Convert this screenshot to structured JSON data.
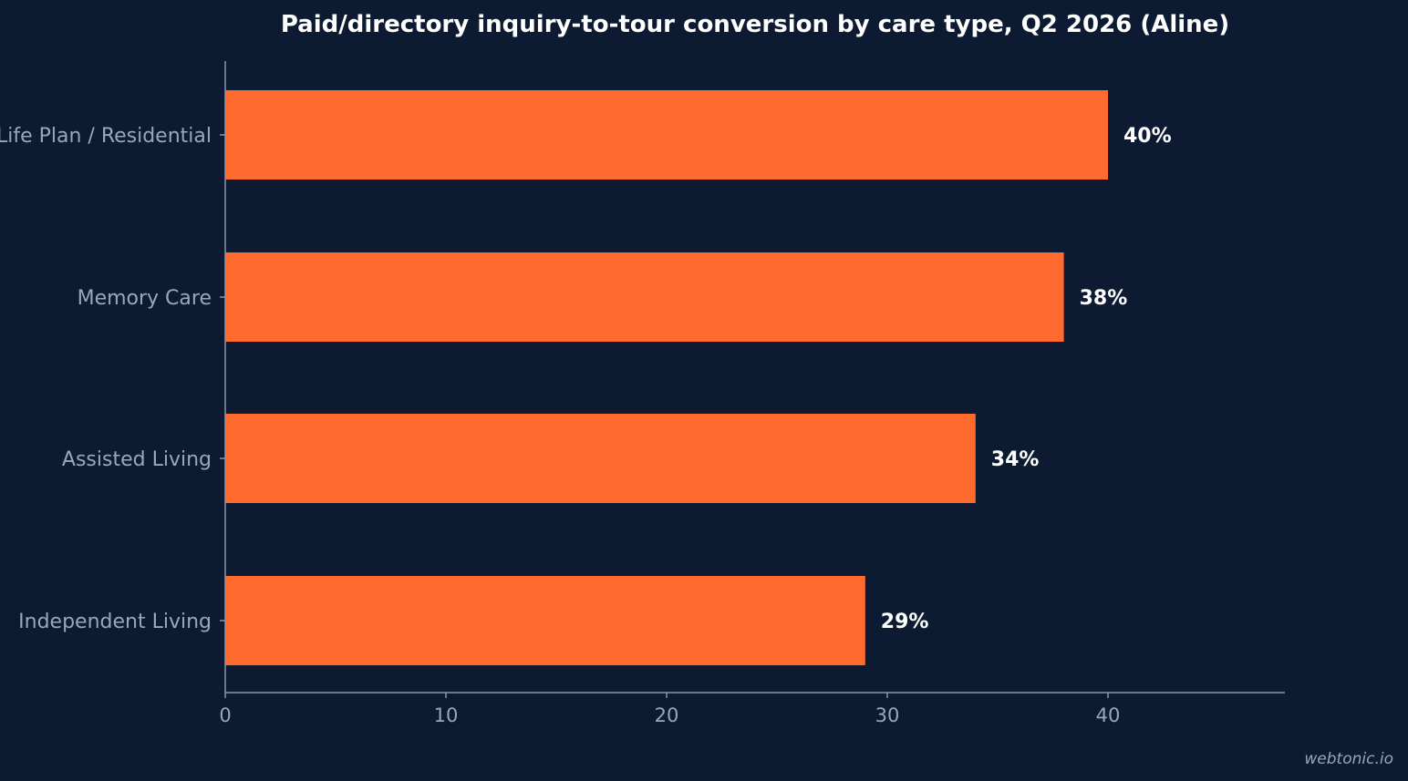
{
  "chart_data": {
    "type": "bar",
    "orientation": "horizontal",
    "title": "Paid/directory inquiry-to-tour conversion by care type, Q2 2026 (Aline)",
    "categories": [
      "Life Plan / Residential",
      "Memory Care",
      "Assisted Living",
      "Independent Living"
    ],
    "values": [
      40,
      38,
      34,
      29
    ],
    "value_labels": [
      "40%",
      "38%",
      "34%",
      "29%"
    ],
    "xlim": [
      0,
      48
    ],
    "xticks": [
      0,
      10,
      20,
      30,
      40
    ],
    "xlabel": "",
    "ylabel": "",
    "grid": false,
    "legend": "none",
    "colors": {
      "background": "#0c1a32",
      "bar": "#ff6b2e",
      "axis": "#8a97ab",
      "text": "#9aa7bb",
      "value_text": "#ffffff"
    }
  },
  "watermark": "webtonic.io"
}
